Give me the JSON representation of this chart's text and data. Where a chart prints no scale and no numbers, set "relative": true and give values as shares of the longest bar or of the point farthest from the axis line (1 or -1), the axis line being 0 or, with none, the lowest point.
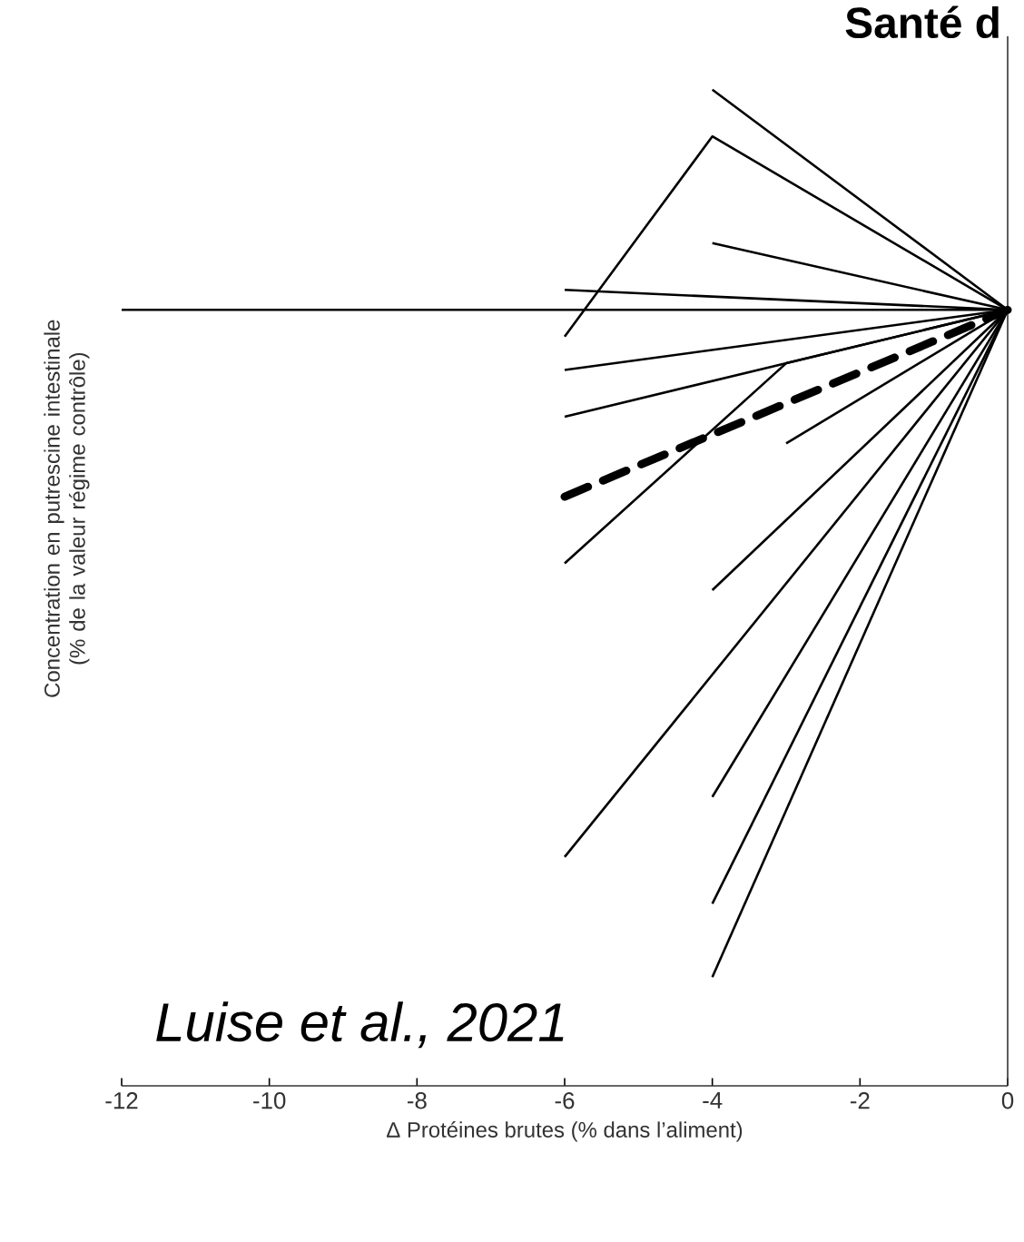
{
  "chart_data": {
    "type": "line",
    "title": "Santé d",
    "xlabel": "Δ Protéines brutes (% dans l’aliment)",
    "ylabel": "Concentration en putrescine intestinale (% de la valeur régime contrôle)",
    "annotations": [
      "Luise et al., 2021"
    ],
    "relative": true,
    "xlim": [
      -12,
      0
    ],
    "xticks": [
      -12,
      -10,
      -8,
      -6,
      -4,
      -2,
      0
    ],
    "tick_labels": "x",
    "series": [
      {
        "color": "#000000",
        "x": [
          -4,
          0
        ],
        "values": [
          0.33,
          0
        ]
      },
      {
        "color": "#000000",
        "x": [
          -6,
          -4,
          0
        ],
        "values": [
          -0.04,
          0.26,
          0
        ]
      },
      {
        "color": "#000000",
        "x": [
          -4,
          0
        ],
        "values": [
          0.1,
          0
        ]
      },
      {
        "color": "#000000",
        "x": [
          -6,
          0
        ],
        "values": [
          0.03,
          0
        ]
      },
      {
        "color": "#000000",
        "x": [
          -12,
          0
        ],
        "values": [
          0,
          0
        ]
      },
      {
        "color": "#000000",
        "x": [
          -6,
          0
        ],
        "values": [
          -0.09,
          0
        ]
      },
      {
        "color": "#000000",
        "x": [
          -6,
          0
        ],
        "values": [
          -0.16,
          0
        ]
      },
      {
        "color": "#000000",
        "x": [
          -6,
          0
        ],
        "values": [
          -0.28,
          0
        ],
        "line_style": "dashed"
      },
      {
        "color": "#000000",
        "x": [
          -6,
          -3,
          0
        ],
        "values": [
          -0.38,
          -0.08,
          0
        ]
      },
      {
        "color": "#000000",
        "x": [
          -3,
          0
        ],
        "values": [
          -0.2,
          0
        ]
      },
      {
        "color": "#000000",
        "x": [
          -4,
          0
        ],
        "values": [
          -0.42,
          0
        ]
      },
      {
        "color": "#000000",
        "x": [
          -6,
          0
        ],
        "values": [
          -0.82,
          0
        ]
      },
      {
        "color": "#000000",
        "x": [
          -4,
          0
        ],
        "values": [
          -0.73,
          0
        ]
      },
      {
        "color": "#000000",
        "x": [
          -4,
          0
        ],
        "values": [
          -0.89,
          0
        ]
      },
      {
        "color": "#000000",
        "x": [
          -4,
          0
        ],
        "values": [
          -1,
          0
        ]
      }
    ]
  }
}
